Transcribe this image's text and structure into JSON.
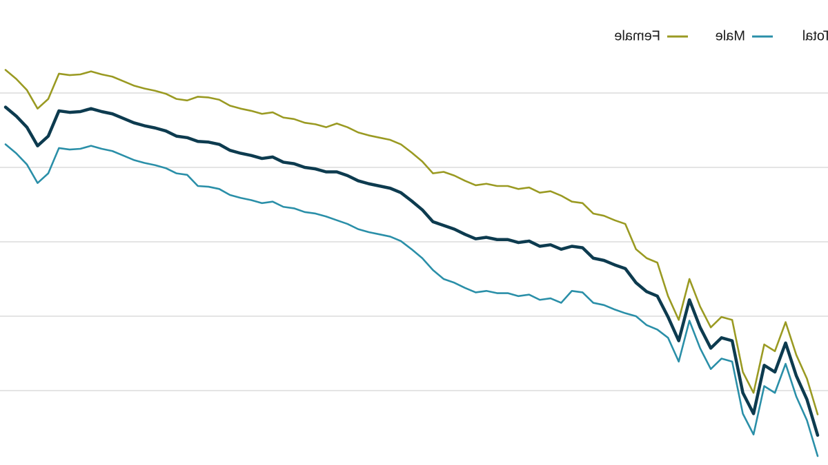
{
  "chart_data": {
    "type": "line",
    "ylim": [
      0,
      6.25
    ],
    "yticks": [
      1,
      2,
      3,
      4,
      5
    ],
    "grid": true,
    "series": [
      {
        "name": "Total",
        "color": "#0d3b4f",
        "values": [
          0.4,
          0.88,
          1.2,
          1.64,
          1.25,
          1.34,
          0.69,
          0.97,
          1.67,
          1.71,
          1.57,
          1.85,
          2.22,
          1.67,
          1.99,
          2.27,
          2.33,
          2.45,
          2.64,
          2.69,
          2.75,
          2.78,
          2.92,
          2.94,
          2.9,
          2.96,
          2.94,
          3.01,
          2.99,
          3.03,
          3.03,
          3.06,
          3.04,
          3.1,
          3.17,
          3.22,
          3.27,
          3.43,
          3.55,
          3.66,
          3.72,
          3.75,
          3.78,
          3.82,
          3.89,
          3.94,
          3.94,
          3.98,
          4.0,
          4.05,
          4.07,
          4.14,
          4.12,
          4.16,
          4.19,
          4.23,
          4.31,
          4.34,
          4.35,
          4.4,
          4.42,
          4.49,
          4.53,
          4.56,
          4.6,
          4.66,
          4.72,
          4.75,
          4.79,
          4.75,
          4.74,
          4.76,
          4.42,
          4.29,
          4.54,
          4.69,
          4.81
        ]
      },
      {
        "name": "Male",
        "color": "#2a8fa8",
        "values": [
          0.12,
          0.6,
          0.92,
          1.36,
          0.97,
          1.06,
          0.41,
          0.69,
          1.39,
          1.43,
          1.29,
          1.57,
          1.94,
          1.39,
          1.71,
          1.82,
          1.88,
          2.0,
          2.04,
          2.09,
          2.15,
          2.18,
          2.32,
          2.34,
          2.18,
          2.24,
          2.22,
          2.29,
          2.27,
          2.31,
          2.31,
          2.34,
          2.32,
          2.38,
          2.45,
          2.5,
          2.62,
          2.78,
          2.9,
          3.01,
          3.07,
          3.1,
          3.13,
          3.17,
          3.24,
          3.29,
          3.34,
          3.38,
          3.4,
          3.45,
          3.47,
          3.54,
          3.52,
          3.56,
          3.59,
          3.63,
          3.71,
          3.74,
          3.75,
          3.9,
          3.92,
          3.99,
          4.03,
          4.06,
          4.1,
          4.16,
          4.22,
          4.25,
          4.29,
          4.25,
          4.24,
          4.26,
          3.92,
          3.79,
          4.04,
          4.19,
          4.31
        ]
      },
      {
        "name": "Female",
        "color": "#9a9a22",
        "values": [
          0.68,
          1.16,
          1.48,
          1.92,
          1.53,
          1.62,
          0.97,
          1.25,
          1.95,
          1.99,
          1.85,
          2.13,
          2.5,
          1.95,
          2.27,
          2.72,
          2.78,
          2.9,
          3.24,
          3.29,
          3.35,
          3.38,
          3.52,
          3.54,
          3.62,
          3.68,
          3.66,
          3.73,
          3.71,
          3.75,
          3.75,
          3.78,
          3.76,
          3.82,
          3.89,
          3.94,
          3.92,
          4.08,
          4.2,
          4.31,
          4.37,
          4.4,
          4.43,
          4.47,
          4.54,
          4.59,
          4.54,
          4.58,
          4.6,
          4.65,
          4.67,
          4.74,
          4.72,
          4.76,
          4.79,
          4.83,
          4.91,
          4.94,
          4.95,
          4.9,
          4.92,
          4.99,
          5.03,
          5.06,
          5.1,
          5.16,
          5.22,
          5.25,
          5.29,
          5.25,
          5.24,
          5.26,
          4.92,
          4.79,
          5.04,
          5.19,
          5.31
        ]
      }
    ]
  }
}
